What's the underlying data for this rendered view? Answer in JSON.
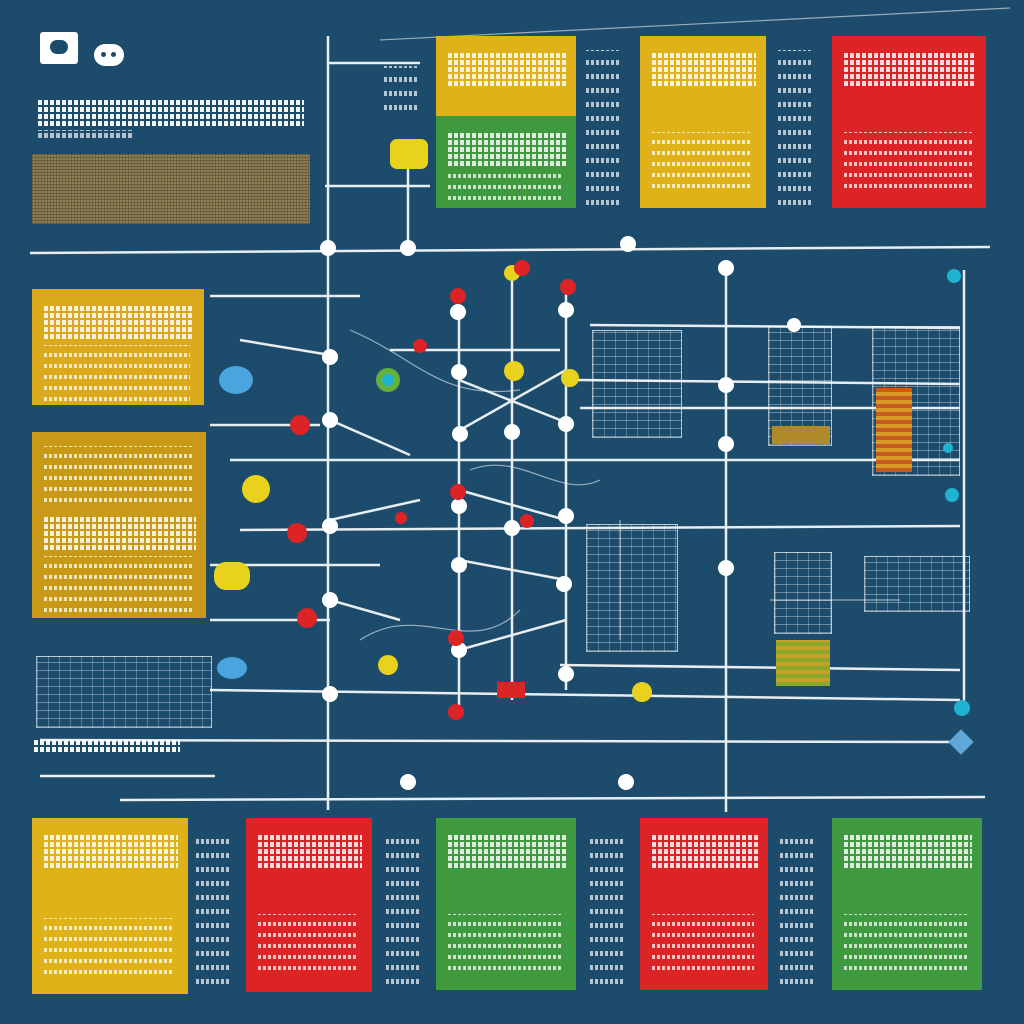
{
  "colors": {
    "background": "#1d4b6b",
    "yellow": "#e0b21a",
    "mustard": "#c99a18",
    "green": "#3f9a3f",
    "red": "#dc2326",
    "white": "#ffffff",
    "cyan": "#1fb3d2",
    "blue": "#4aa4dd"
  },
  "icons": [
    "camera-icon",
    "speech-bubble-icon"
  ]
}
